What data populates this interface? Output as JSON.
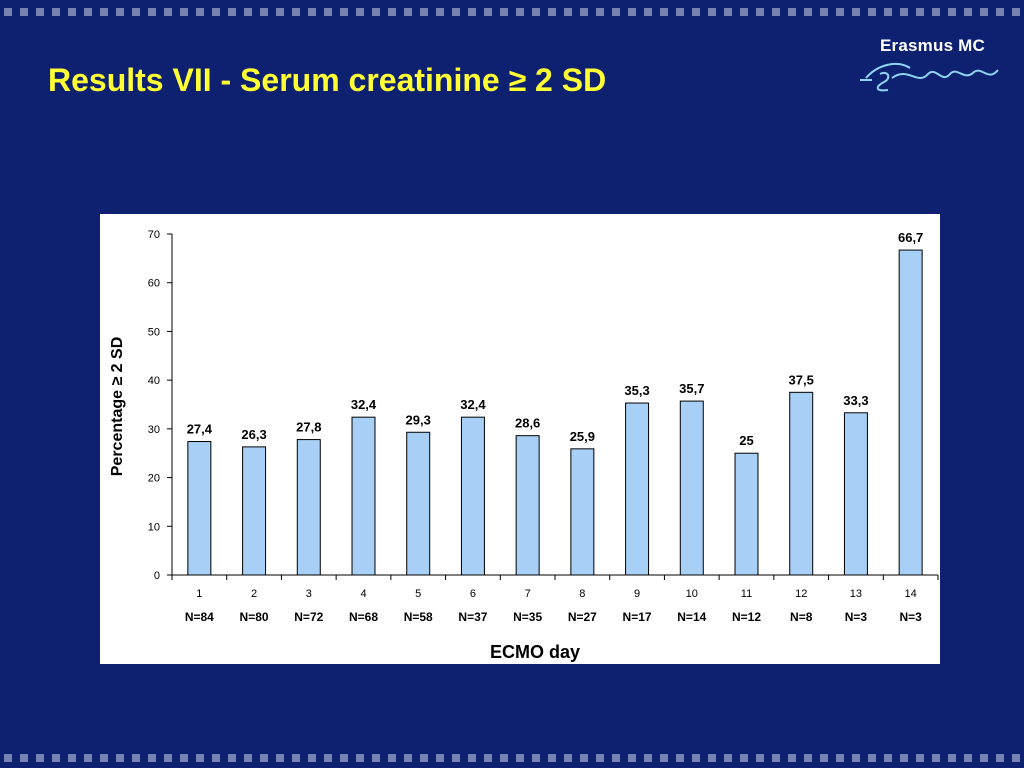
{
  "slide": {
    "title": "Results VII - Serum creatinine ≥ 2 SD",
    "logo_text": "Erasmus MC",
    "logo_script": "Erafus",
    "background_color": "#0d2170",
    "title_color": "#ffff33"
  },
  "chart_data": {
    "type": "bar",
    "categories": [
      "1",
      "2",
      "3",
      "4",
      "5",
      "6",
      "7",
      "8",
      "9",
      "10",
      "11",
      "12",
      "13",
      "14"
    ],
    "n_labels": [
      "N=84",
      "N=80",
      "N=72",
      "N=68",
      "N=58",
      "N=37",
      "N=35",
      "N=27",
      "N=17",
      "N=14",
      "N=12",
      "N=8",
      "N=3",
      "N=3"
    ],
    "values": [
      27.4,
      26.3,
      27.8,
      32.4,
      29.3,
      32.4,
      28.6,
      25.9,
      35.3,
      35.7,
      25,
      37.5,
      33.3,
      66.7
    ],
    "value_labels": [
      "27,4",
      "26,3",
      "27,8",
      "32,4",
      "29,3",
      "32,4",
      "28,6",
      "25,9",
      "35,3",
      "35,7",
      "25",
      "37,5",
      "33,3",
      "66,7"
    ],
    "xlabel": "ECMO day",
    "ylabel": "Percentage ≥ 2 SD",
    "ylim": [
      0,
      70
    ],
    "yticks": [
      0,
      10,
      20,
      30,
      40,
      50,
      60,
      70
    ],
    "grid": false,
    "bar_color": "#a8cff5",
    "bar_edge_color": "#000000"
  }
}
